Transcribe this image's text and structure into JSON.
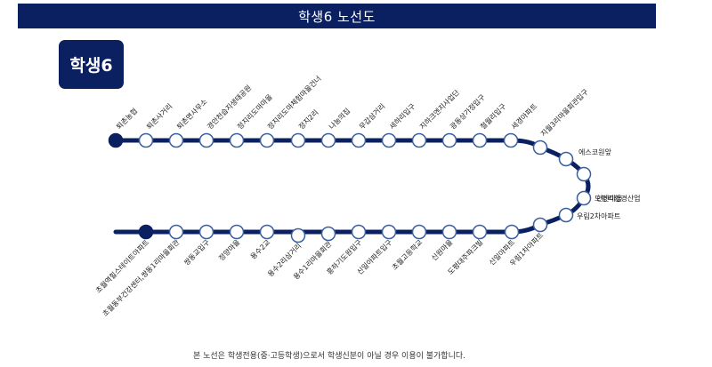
{
  "title": "학생6 노선도",
  "badge": "학생6",
  "footer_note": "본 노선은 학생전용(중·고등학생)으로서 학생신분이 아닐 경우 이용이 불가합니다.",
  "colors": {
    "primary": "#0b2060",
    "stop_fill": "#ffffff",
    "stop_border": "#3a5f9e",
    "text": "#1a1a1a"
  },
  "stops": [
    "퇴촌농협",
    "퇴촌사거리",
    "퇴촌면사무소",
    "경안천습지생태공원",
    "정지리도마마을",
    "정지리도마체험마을건너",
    "정지2리",
    "나눔의집",
    "무갑삼거리",
    "세하리입구",
    "지하크엔지사업단",
    "광동상가정입구",
    "철월리입구",
    "세경아파트",
    "지월3리마을회관입구",
    "에스코원앞",
    "현산마을",
    "도평리환경산업",
    "우림2차아파트",
    "우림1차아파트",
    "신일아파트",
    "도평대주파크빌",
    "신원마을",
    "초월고등학교",
    "신일아파트입구",
    "흥하기도원입구",
    "용수1리마을회관",
    "용수2리삼거리",
    "용수2교",
    "정양마을",
    "쌍동교입구",
    "초월동부건강센터,쌍동1리마을회관",
    "초월역힐스테이트아파트"
  ]
}
